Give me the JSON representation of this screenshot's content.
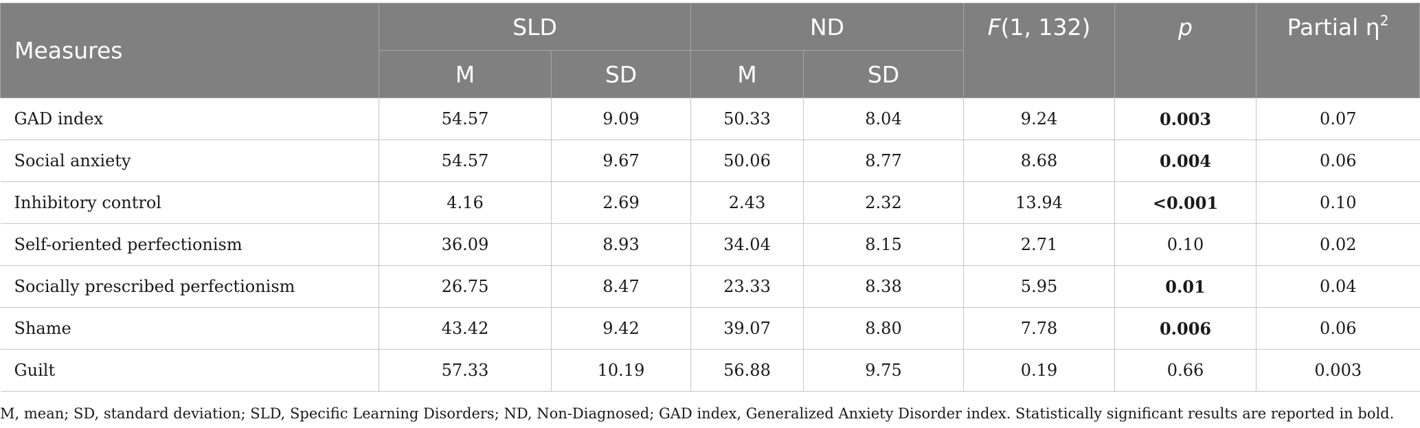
{
  "header": {
    "measures": "Measures",
    "group_sld": "SLD",
    "group_nd": "ND",
    "f_stat": {
      "letter": "F",
      "rest": "(1, 132)"
    },
    "p_label": "p",
    "eta": {
      "text": "Partial η",
      "sup": "2"
    },
    "sub": {
      "m": "M",
      "sd": "SD"
    }
  },
  "rows": [
    {
      "measure": "GAD index",
      "sld_m": "54.57",
      "sld_sd": "9.09",
      "nd_m": "50.33",
      "nd_sd": "8.04",
      "f": "9.24",
      "p": "0.003",
      "p_bold": true,
      "eta": "0.07"
    },
    {
      "measure": "Social anxiety",
      "sld_m": "54.57",
      "sld_sd": "9.67",
      "nd_m": "50.06",
      "nd_sd": "8.77",
      "f": "8.68",
      "p": "0.004",
      "p_bold": true,
      "eta": "0.06"
    },
    {
      "measure": "Inhibitory control",
      "sld_m": "4.16",
      "sld_sd": "2.69",
      "nd_m": "2.43",
      "nd_sd": "2.32",
      "f": "13.94",
      "p": "<0.001",
      "p_bold": true,
      "eta": "0.10"
    },
    {
      "measure": "Self-oriented perfectionism",
      "sld_m": "36.09",
      "sld_sd": "8.93",
      "nd_m": "34.04",
      "nd_sd": "8.15",
      "f": "2.71",
      "p": "0.10",
      "p_bold": false,
      "eta": "0.02"
    },
    {
      "measure": "Socially prescribed perfectionism",
      "sld_m": "26.75",
      "sld_sd": "8.47",
      "nd_m": "23.33",
      "nd_sd": "8.38",
      "f": "5.95",
      "p": "0.01",
      "p_bold": true,
      "eta": "0.04"
    },
    {
      "measure": "Shame",
      "sld_m": "43.42",
      "sld_sd": "9.42",
      "nd_m": "39.07",
      "nd_sd": "8.80",
      "f": "7.78",
      "p": "0.006",
      "p_bold": true,
      "eta": "0.06"
    },
    {
      "measure": "Guilt",
      "sld_m": "57.33",
      "sld_sd": "10.19",
      "nd_m": "56.88",
      "nd_sd": "9.75",
      "f": "0.19",
      "p": "0.66",
      "p_bold": false,
      "eta": "0.003"
    }
  ],
  "footnote": "M, mean; SD, standard deviation; SLD, Specific Learning Disorders; ND, Non-Diagnosed; GAD index, Generalized Anxiety Disorder index. Statistically significant results are reported in bold.",
  "colors": {
    "header_bg": "#808080",
    "header_text": "#ffffff",
    "grid": "#c4c4c4"
  }
}
